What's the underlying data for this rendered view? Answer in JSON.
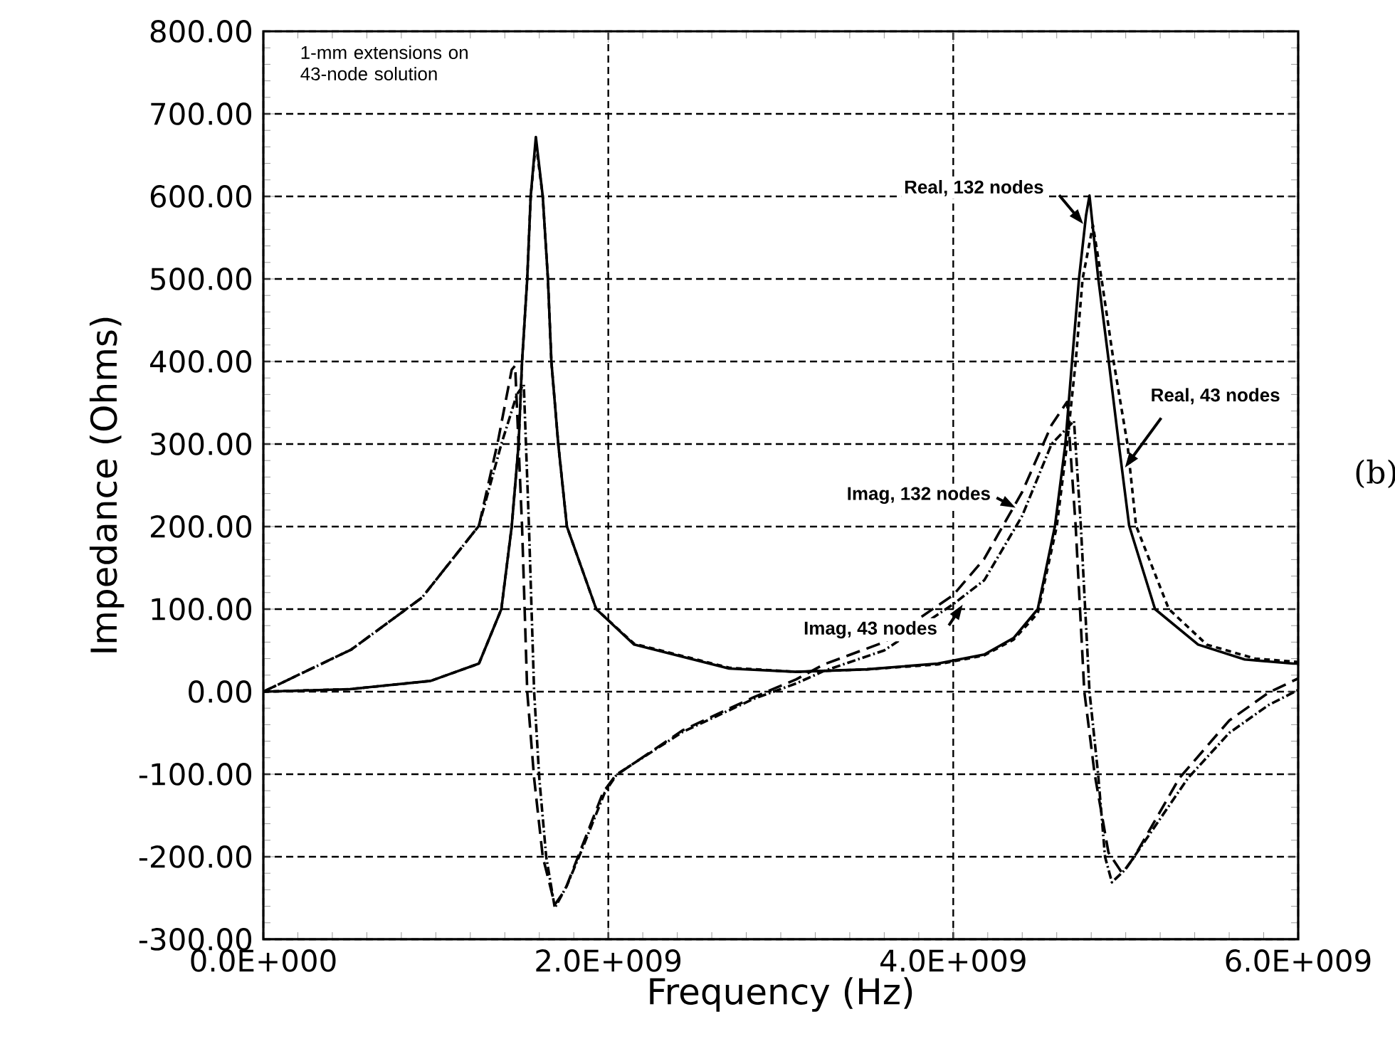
{
  "chart_data": {
    "type": "line",
    "xlabel": "Frequency (Hz)",
    "ylabel": "Impedance (Ohms)",
    "annotations": [
      "1-mm extensions on 43-node solution",
      "(b)"
    ],
    "xlim": [
      0,
      6000000000.0
    ],
    "xticks": [
      {
        "value": 0,
        "label": "0.0E+000"
      },
      {
        "value": 2000000000.0,
        "label": "2.0E+009"
      },
      {
        "value": 4000000000.0,
        "label": "4.0E+009"
      },
      {
        "value": 6000000000.0,
        "label": "6.0E+009"
      }
    ],
    "ylim": [
      -300,
      800
    ],
    "yticks": [
      {
        "value": -300,
        "label": "-300.00"
      },
      {
        "value": -200,
        "label": "-200.00"
      },
      {
        "value": -100,
        "label": "-100.00"
      },
      {
        "value": 0,
        "label": "0.00"
      },
      {
        "value": 100,
        "label": "100.00"
      },
      {
        "value": 200,
        "label": "200.00"
      },
      {
        "value": 300,
        "label": "300.00"
      },
      {
        "value": 400,
        "label": "400.00"
      },
      {
        "value": 500,
        "label": "500.00"
      },
      {
        "value": 600,
        "label": "600.00"
      },
      {
        "value": 700,
        "label": "700.00"
      },
      {
        "value": 800,
        "label": "800.00"
      }
    ],
    "grid": true,
    "marker": "none",
    "series": [
      {
        "name": "Real, 132 nodes",
        "color": "#000000",
        "line_style": "solid",
        "x": [
          0,
          500000000.0,
          970000000.0,
          1250000000.0,
          1380000000.0,
          1440000000.0,
          1480000000.0,
          1500000000.0,
          1530000000.0,
          1550000000.0,
          1580000000.0,
          1620000000.0,
          1650000000.0,
          1670000000.0,
          1710000000.0,
          1760000000.0,
          1930000000.0,
          2150000000.0,
          2700000000.0,
          3090000000.0,
          3500000000.0,
          3910000000.0,
          4180000000.0,
          4350000000.0,
          4490000000.0,
          4590000000.0,
          4650000000.0,
          4690000000.0,
          4730000000.0,
          4770000000.0,
          4790000000.0,
          4840000000.0,
          4900000000.0,
          4960000000.0,
          5020000000.0,
          5170000000.0,
          5420000000.0,
          5690000000.0,
          5970000000.0,
          6000000000.0
        ],
        "values": [
          0,
          3,
          13,
          34,
          100,
          200,
          300,
          400,
          500,
          600,
          672,
          600,
          500,
          400,
          300,
          200,
          100,
          57,
          28,
          24,
          27,
          34,
          45,
          65,
          100,
          201,
          300,
          403,
          502,
          577,
          601,
          502,
          403,
          300,
          201,
          100,
          57,
          39,
          34,
          34
        ]
      },
      {
        "name": "Real, 43 nodes",
        "color": "#000000",
        "line_style": "dashed",
        "x": [
          0,
          500000000.0,
          970000000.0,
          1250000000.0,
          1380000000.0,
          1440000000.0,
          1480000000.0,
          1500000000.0,
          1530000000.0,
          1550000000.0,
          1580000000.0,
          1620000000.0,
          1650000000.0,
          1670000000.0,
          1710000000.0,
          1760000000.0,
          1930000000.0,
          2150000000.0,
          2700000000.0,
          3090000000.0,
          3500000000.0,
          3910000000.0,
          4180000000.0,
          4350000000.0,
          4490000000.0,
          4600000000.0,
          4660000000.0,
          4710000000.0,
          4750000000.0,
          4810000000.0,
          4860000000.0,
          4930000000.0,
          5010000000.0,
          5060000000.0,
          5250000000.0,
          5470000000.0,
          5750000000.0,
          6000000000.0
        ],
        "values": [
          0,
          3,
          13,
          34,
          100,
          200,
          300,
          400,
          500,
          600,
          665,
          600,
          500,
          400,
          300,
          200,
          100,
          58,
          29,
          24,
          27,
          33,
          44,
          63,
          95,
          200,
          300,
          400,
          500,
          565,
          500,
          400,
          300,
          201,
          100,
          57,
          40,
          36
        ]
      },
      {
        "name": "Imag, 132 nodes",
        "color": "#000000",
        "line_style": "loosely dashed",
        "x": [
          0,
          510000000.0,
          920000000.0,
          1250000000.0,
          1360000000.0,
          1440000000.0,
          1460000000.0,
          1500000000.0,
          1530000000.0,
          1570000000.0,
          1620000000.0,
          1690000000.0,
          1750000000.0,
          1830000000.0,
          1970000000.0,
          2040000000.0,
          2430000000.0,
          2840000000.0,
          3090000000.0,
          3250000000.0,
          3600000000.0,
          4000000000.0,
          4180000000.0,
          4400000000.0,
          4570000000.0,
          4660000000.0,
          4710000000.0,
          4760000000.0,
          4820000000.0,
          4900000000.0,
          4980000000.0,
          5050000000.0,
          5310000000.0,
          5600000000.0,
          5830000000.0,
          6000000000.0
        ],
        "values": [
          0,
          51,
          114,
          201,
          303,
          390,
          395,
          200,
          0,
          -105,
          -200,
          -258,
          -240,
          -197,
          -122,
          -102,
          -47,
          -7,
          15,
          33,
          60,
          117,
          161,
          242,
          323,
          351,
          200,
          0,
          -100,
          -195,
          -220,
          -200,
          -105,
          -35,
          -1,
          16
        ]
      },
      {
        "name": "Imag, 43 nodes",
        "color": "#000000",
        "line_style": "dashdotted",
        "x": [
          0,
          510000000.0,
          920000000.0,
          1250000000.0,
          1380000000.0,
          1470000000.0,
          1510000000.0,
          1540000000.0,
          1570000000.0,
          1600000000.0,
          1640000000.0,
          1690000000.0,
          1760000000.0,
          1850000000.0,
          1980000000.0,
          2050000000.0,
          2430000000.0,
          2840000000.0,
          3090000000.0,
          3250000000.0,
          3600000000.0,
          4000000000.0,
          4180000000.0,
          4400000000.0,
          4570000000.0,
          4700000000.0,
          4740000000.0,
          4790000000.0,
          4840000000.0,
          4880000000.0,
          4920000000.0,
          5000000000.0,
          5360000000.0,
          5600000000.0,
          5830000000.0,
          6000000000.0
        ],
        "values": [
          0,
          51,
          114,
          201,
          300,
          360,
          372,
          200,
          0,
          -105,
          -200,
          -262,
          -235,
          -190,
          -122,
          -100,
          -49,
          -9,
          10,
          25,
          50,
          106,
          135,
          213,
          300,
          328,
          200,
          0,
          -100,
          -200,
          -231,
          -215,
          -105,
          -50,
          -16,
          2
        ]
      }
    ]
  }
}
